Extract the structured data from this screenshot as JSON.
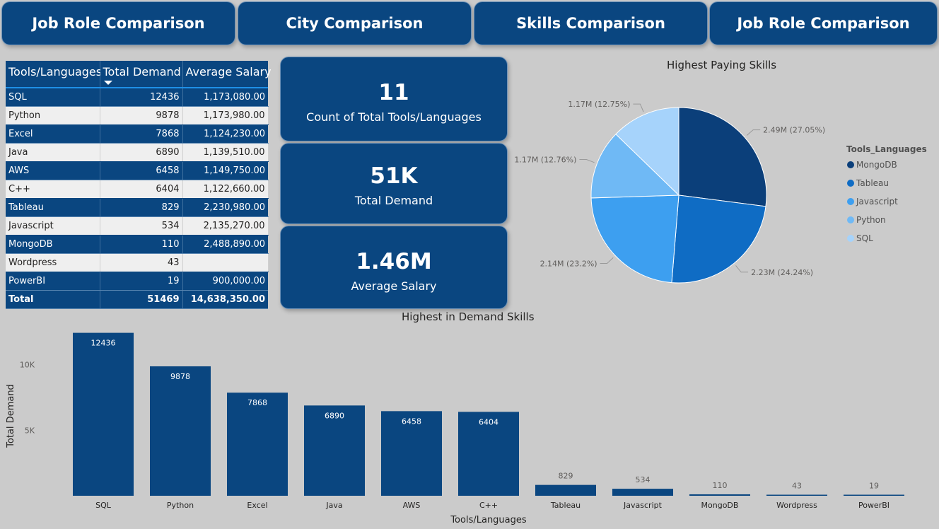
{
  "nav": [
    {
      "label": "Job Role Comparison"
    },
    {
      "label": "City Comparison"
    },
    {
      "label": "Skills Comparison"
    },
    {
      "label": "Job Role Comparison"
    }
  ],
  "table": {
    "headers": [
      "Tools/Languages",
      "Total Demand",
      "Average Salary"
    ],
    "rows": [
      {
        "tool": "SQL",
        "demand": "12436",
        "salary": "1,173,080.00"
      },
      {
        "tool": "Python",
        "demand": "9878",
        "salary": "1,173,980.00"
      },
      {
        "tool": "Excel",
        "demand": "7868",
        "salary": "1,124,230.00"
      },
      {
        "tool": "Java",
        "demand": "6890",
        "salary": "1,139,510.00"
      },
      {
        "tool": "AWS",
        "demand": "6458",
        "salary": "1,149,750.00"
      },
      {
        "tool": "C++",
        "demand": "6404",
        "salary": "1,122,660.00"
      },
      {
        "tool": "Tableau",
        "demand": "829",
        "salary": "2,230,980.00"
      },
      {
        "tool": "Javascript",
        "demand": "534",
        "salary": "2,135,270.00"
      },
      {
        "tool": "MongoDB",
        "demand": "110",
        "salary": "2,488,890.00"
      },
      {
        "tool": "Wordpress",
        "demand": "43",
        "salary": ""
      },
      {
        "tool": "PowerBI",
        "demand": "19",
        "salary": "900,000.00"
      }
    ],
    "total": {
      "label": "Total",
      "demand": "51469",
      "salary": "14,638,350.00"
    }
  },
  "kpis": [
    {
      "value": "11",
      "label": "Count of Total Tools/Languages"
    },
    {
      "value": "51K",
      "label": "Total Demand"
    },
    {
      "value": "1.46M",
      "label": "Average Salary"
    }
  ],
  "colors": {
    "navy": "#0a4680",
    "pie": [
      "#0b3f7a",
      "#0f6cc4",
      "#3d9ff0",
      "#6fb9f5",
      "#a6d3fb"
    ],
    "background": "#cbcbcb"
  },
  "chart_data": [
    {
      "type": "pie",
      "title": "Highest Paying Skills",
      "legend_title": "Tools_Languages",
      "legend_position": "right",
      "slices": [
        {
          "label": "MongoDB",
          "value": 2488890,
          "display": "2.49M (27.05%)"
        },
        {
          "label": "Tableau",
          "value": 2230980,
          "display": "2.23M (24.24%)"
        },
        {
          "label": "Javascript",
          "value": 2135270,
          "display": "2.14M (23.2%)"
        },
        {
          "label": "Python",
          "value": 1173980,
          "display": "1.17M (12.76%)"
        },
        {
          "label": "SQL",
          "value": 1173080,
          "display": "1.17M (12.75%)"
        }
      ]
    },
    {
      "type": "bar",
      "title": "Highest in Demand Skills",
      "xlabel": "Tools/Languages",
      "ylabel": "Total Demand",
      "categories": [
        "SQL",
        "Python",
        "Excel",
        "Java",
        "AWS",
        "C++",
        "Tableau",
        "Javascript",
        "MongoDB",
        "Wordpress",
        "PowerBI"
      ],
      "values": [
        12436,
        9878,
        7868,
        6890,
        6458,
        6404,
        829,
        534,
        110,
        43,
        19
      ],
      "yticks": [
        {
          "value": 5000,
          "label": "5K"
        },
        {
          "value": 10000,
          "label": "10K"
        }
      ],
      "grid": false
    }
  ]
}
